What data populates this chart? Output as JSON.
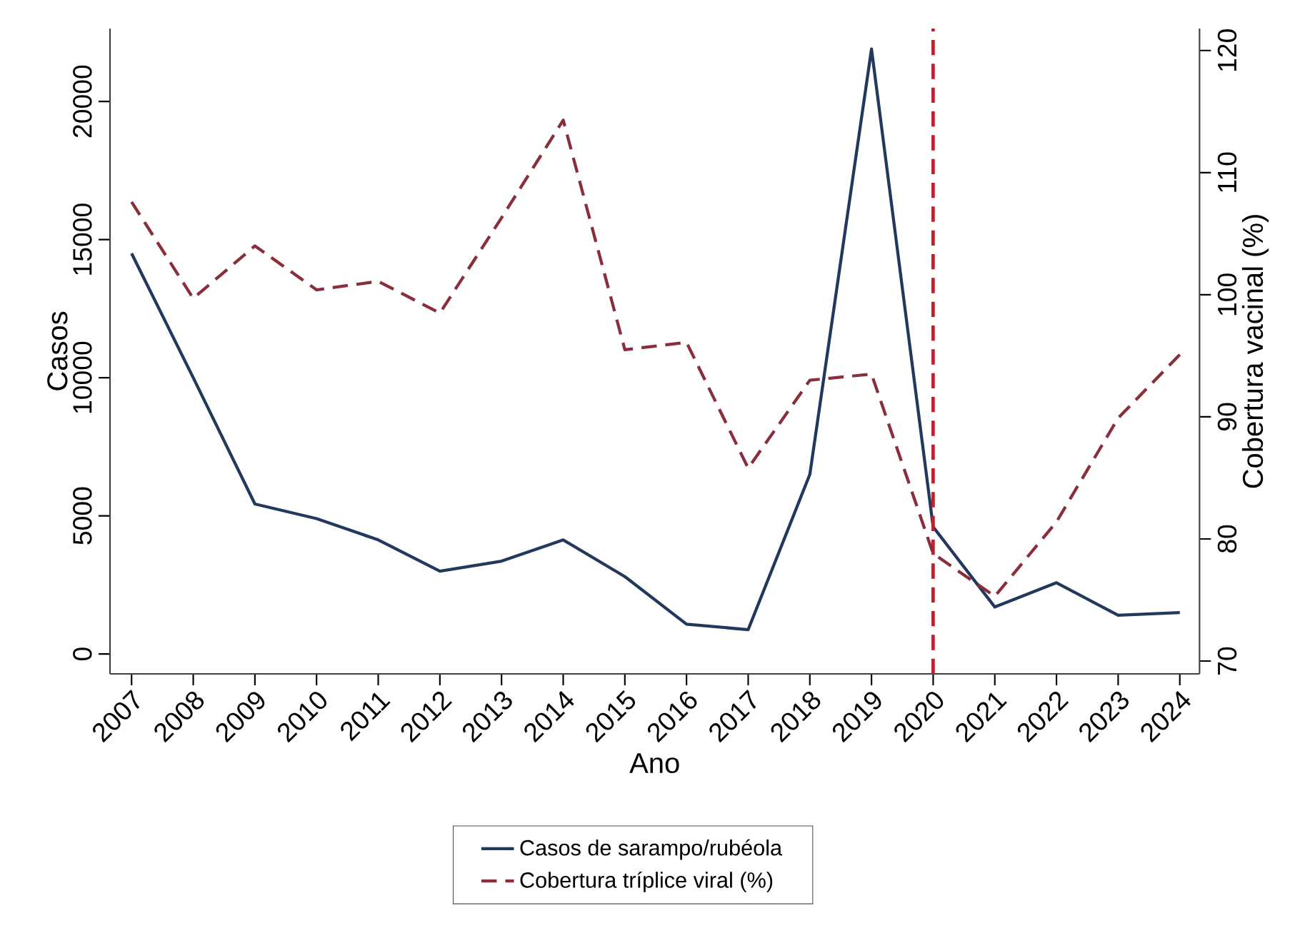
{
  "chart_data": {
    "type": "line",
    "categories": [
      "2007",
      "2008",
      "2009",
      "2010",
      "2011",
      "2012",
      "2013",
      "2014",
      "2015",
      "2016",
      "2017",
      "2018",
      "2019",
      "2020",
      "2021",
      "2022",
      "2023",
      "2024"
    ],
    "series": [
      {
        "name": "Casos de sarampo/rubéola",
        "color": "#22385c",
        "line_style": "solid",
        "values": [
          14500,
          10000,
          5430,
          4900,
          4130,
          3000,
          3360,
          4130,
          2800,
          1080,
          880,
          6500,
          21900,
          4600,
          1700,
          2580,
          1400,
          1500
        ]
      },
      {
        "name": "Cobertura tríplice viral (%)",
        "color": "#8b2e3c",
        "line_style": "dashed",
        "axis": "y2",
        "values": [
          107.6,
          99.7,
          104,
          100.4,
          101.1,
          98.5,
          106.3,
          114.3,
          95.5,
          96.1,
          85.8,
          93.0,
          93.5,
          78.8,
          75.3,
          81.4,
          89.9,
          95.1
        ]
      }
    ],
    "xlabel": "Ano",
    "ylabel": "Casos",
    "y2label": "Cobertura vacinal (%)",
    "ylim": [
      -720,
      22640
    ],
    "yticks": [
      0,
      5000,
      10000,
      15000,
      20000
    ],
    "y2lim": [
      68.95,
      121.8
    ],
    "y2ticks": [
      70,
      80,
      90,
      100,
      110,
      120
    ],
    "ref_lines": [
      {
        "axis": "x",
        "value": "2020",
        "color": "#b8232f",
        "line_style": "dashed"
      }
    ],
    "legend": "bottom"
  }
}
